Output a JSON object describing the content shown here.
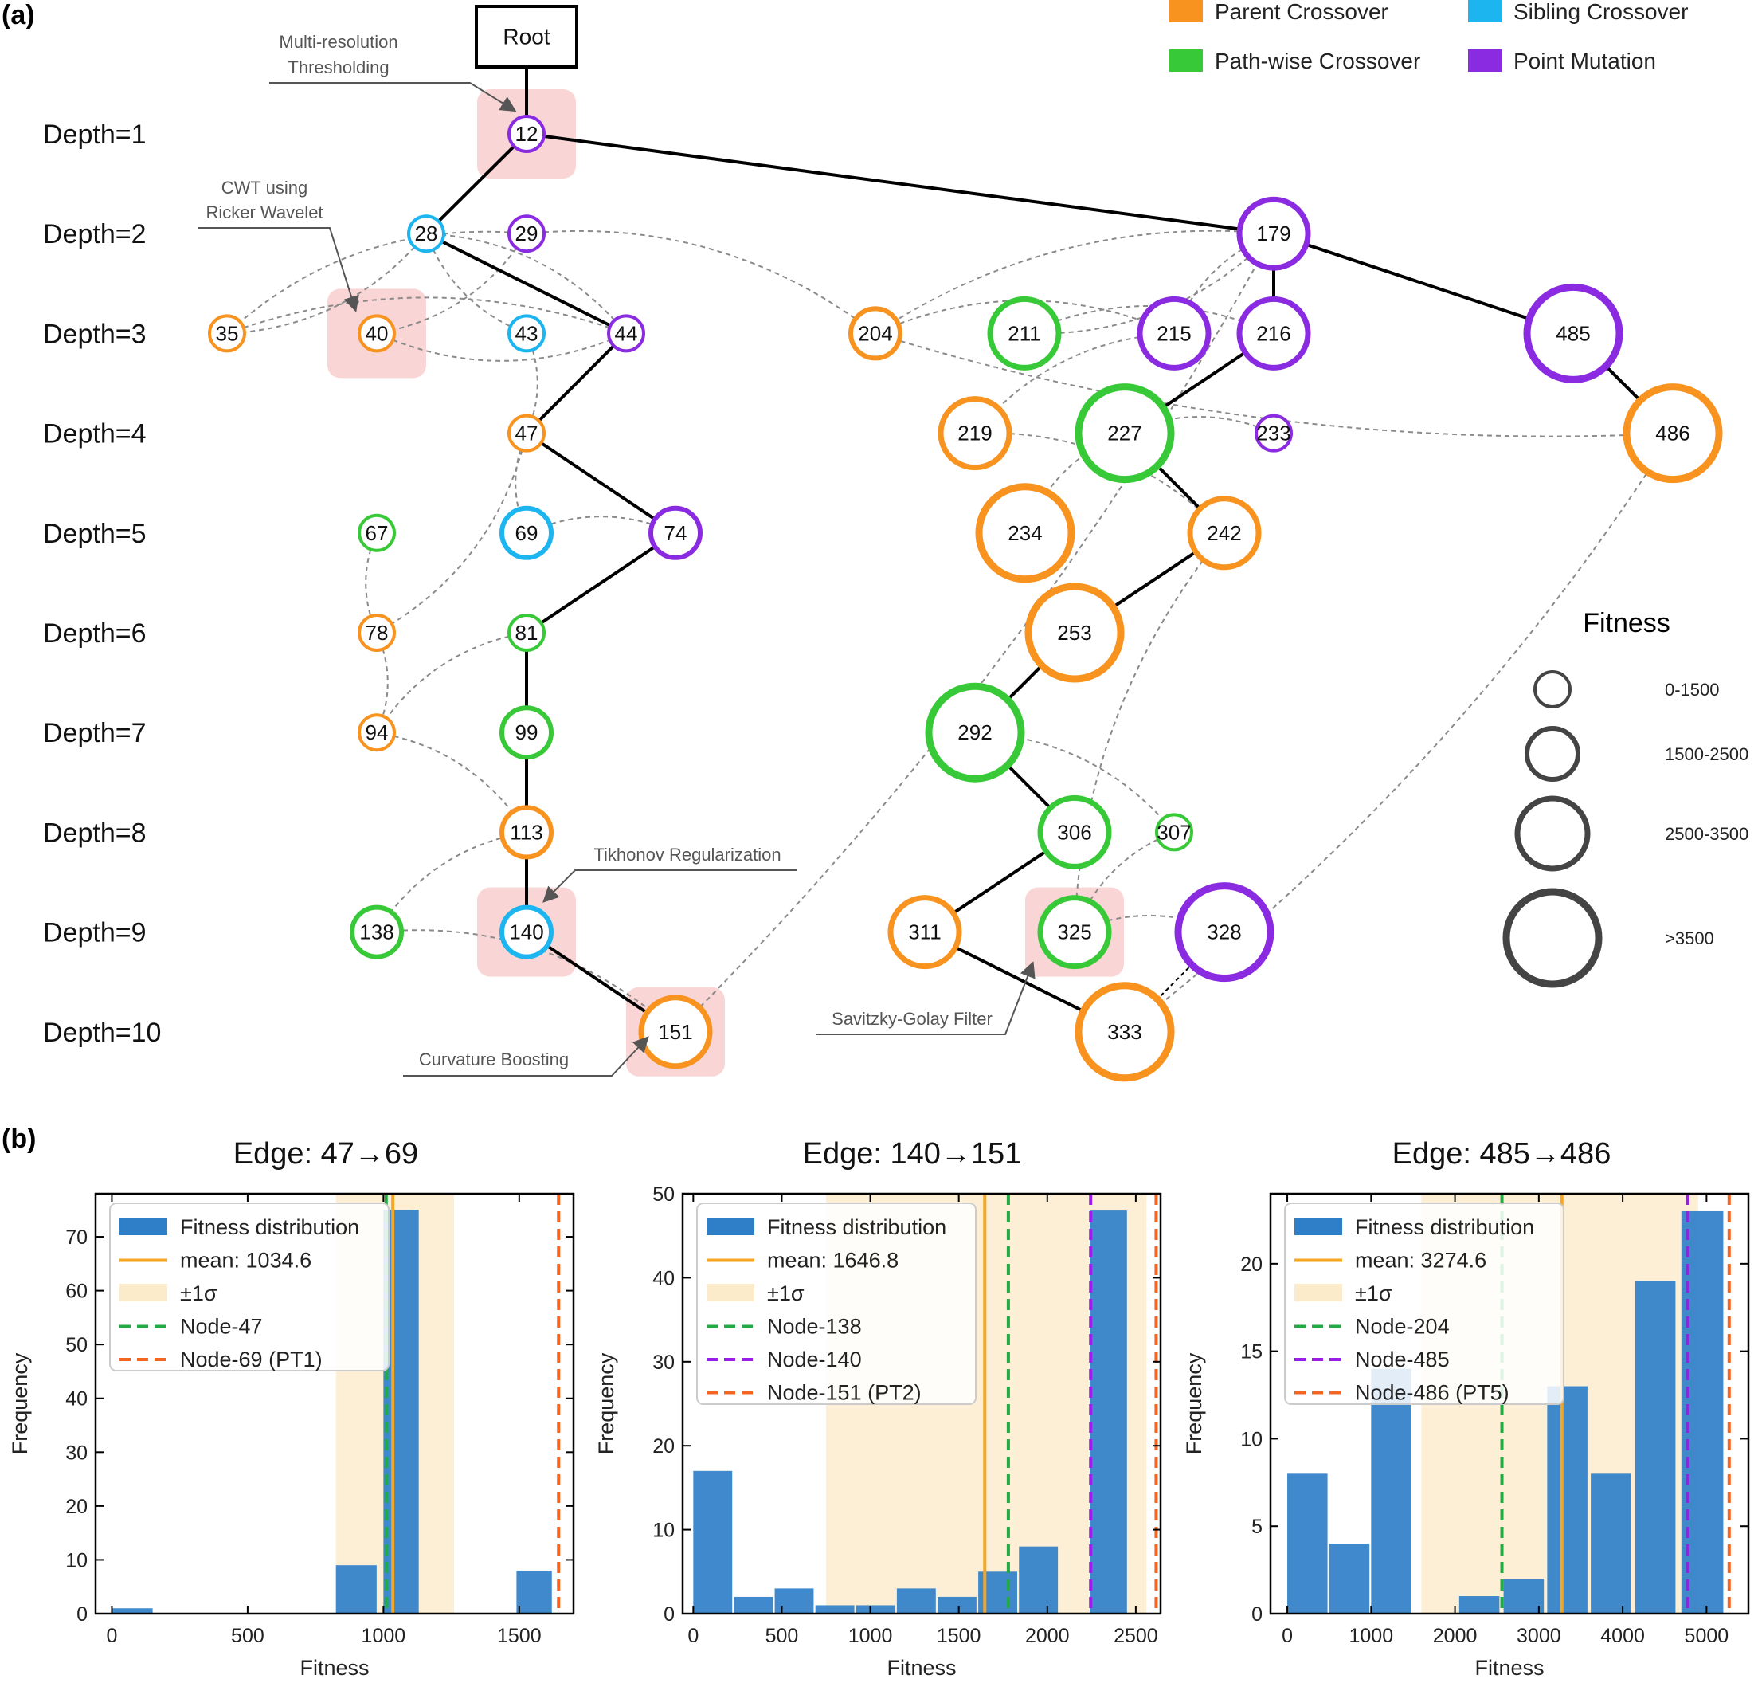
{
  "panel_a": {
    "label": "(a)",
    "root_label": "Root",
    "fitness_legend_title": "Fitness",
    "size_legend": [
      {
        "label": "0-1500"
      },
      {
        "label": "1500-2500"
      },
      {
        "label": "2500-3500"
      },
      {
        "label": ">3500"
      }
    ],
    "operators": [
      {
        "name": "Parent Crossover",
        "color": "#F7931E"
      },
      {
        "name": "Sibling Crossover",
        "color": "#1CB5EF"
      },
      {
        "name": "Path-wise Crossover",
        "color": "#38C938"
      },
      {
        "name": "Point Mutation",
        "color": "#8A2BE2"
      }
    ],
    "depths": [
      "Depth=1",
      "Depth=2",
      "Depth=3",
      "Depth=4",
      "Depth=5",
      "Depth=6",
      "Depth=7",
      "Depth=8",
      "Depth=9",
      "Depth=10"
    ],
    "annotations": [
      {
        "id": "a1",
        "lines": [
          "Multi-resolution",
          "Thresholding"
        ]
      },
      {
        "id": "a2",
        "lines": [
          "CWT using",
          "Ricker Wavelet"
        ]
      },
      {
        "id": "a3",
        "lines": [
          "Tikhonov Regularization"
        ]
      },
      {
        "id": "a4",
        "lines": [
          "Curvature Boosting"
        ]
      },
      {
        "id": "a5",
        "lines": [
          "Savitzky-Golay Filter"
        ]
      }
    ],
    "nodes": [
      {
        "id": "12",
        "depth": 1,
        "op": "Point Mutation",
        "fitness_bin": "0-1500",
        "highlight": true
      },
      {
        "id": "28",
        "depth": 2,
        "op": "Sibling Crossover",
        "fitness_bin": "0-1500"
      },
      {
        "id": "29",
        "depth": 2,
        "op": "Point Mutation",
        "fitness_bin": "0-1500"
      },
      {
        "id": "179",
        "depth": 2,
        "op": "Point Mutation",
        "fitness_bin": "2500-3500"
      },
      {
        "id": "35",
        "depth": 3,
        "op": "Parent Crossover",
        "fitness_bin": "0-1500"
      },
      {
        "id": "40",
        "depth": 3,
        "op": "Parent Crossover",
        "fitness_bin": "0-1500",
        "highlight": true
      },
      {
        "id": "43",
        "depth": 3,
        "op": "Sibling Crossover",
        "fitness_bin": "0-1500"
      },
      {
        "id": "44",
        "depth": 3,
        "op": "Point Mutation",
        "fitness_bin": "0-1500"
      },
      {
        "id": "204",
        "depth": 3,
        "op": "Parent Crossover",
        "fitness_bin": "1500-2500"
      },
      {
        "id": "211",
        "depth": 3,
        "op": "Path-wise Crossover",
        "fitness_bin": "2500-3500"
      },
      {
        "id": "215",
        "depth": 3,
        "op": "Point Mutation",
        "fitness_bin": "2500-3500"
      },
      {
        "id": "216",
        "depth": 3,
        "op": "Point Mutation",
        "fitness_bin": "2500-3500"
      },
      {
        "id": "485",
        "depth": 3,
        "op": "Point Mutation",
        "fitness_bin": ">3500"
      },
      {
        "id": "47",
        "depth": 4,
        "op": "Parent Crossover",
        "fitness_bin": "0-1500"
      },
      {
        "id": "219",
        "depth": 4,
        "op": "Parent Crossover",
        "fitness_bin": "2500-3500"
      },
      {
        "id": "227",
        "depth": 4,
        "op": "Path-wise Crossover",
        "fitness_bin": ">3500"
      },
      {
        "id": "233",
        "depth": 4,
        "op": "Point Mutation",
        "fitness_bin": "0-1500"
      },
      {
        "id": "486",
        "depth": 4,
        "op": "Parent Crossover",
        "fitness_bin": ">3500"
      },
      {
        "id": "67",
        "depth": 5,
        "op": "Path-wise Crossover",
        "fitness_bin": "0-1500"
      },
      {
        "id": "69",
        "depth": 5,
        "op": "Sibling Crossover",
        "fitness_bin": "1500-2500"
      },
      {
        "id": "74",
        "depth": 5,
        "op": "Point Mutation",
        "fitness_bin": "1500-2500"
      },
      {
        "id": "234",
        "depth": 5,
        "op": "Parent Crossover",
        "fitness_bin": ">3500"
      },
      {
        "id": "242",
        "depth": 5,
        "op": "Parent Crossover",
        "fitness_bin": "2500-3500"
      },
      {
        "id": "78",
        "depth": 6,
        "op": "Parent Crossover",
        "fitness_bin": "0-1500"
      },
      {
        "id": "81",
        "depth": 6,
        "op": "Path-wise Crossover",
        "fitness_bin": "0-1500"
      },
      {
        "id": "253",
        "depth": 6,
        "op": "Parent Crossover",
        "fitness_bin": ">3500"
      },
      {
        "id": "94",
        "depth": 7,
        "op": "Parent Crossover",
        "fitness_bin": "0-1500"
      },
      {
        "id": "99",
        "depth": 7,
        "op": "Path-wise Crossover",
        "fitness_bin": "1500-2500"
      },
      {
        "id": "292",
        "depth": 7,
        "op": "Path-wise Crossover",
        "fitness_bin": ">3500"
      },
      {
        "id": "113",
        "depth": 8,
        "op": "Parent Crossover",
        "fitness_bin": "1500-2500"
      },
      {
        "id": "306",
        "depth": 8,
        "op": "Path-wise Crossover",
        "fitness_bin": "2500-3500"
      },
      {
        "id": "307",
        "depth": 8,
        "op": "Path-wise Crossover",
        "fitness_bin": "0-1500"
      },
      {
        "id": "138",
        "depth": 9,
        "op": "Path-wise Crossover",
        "fitness_bin": "1500-2500"
      },
      {
        "id": "140",
        "depth": 9,
        "op": "Sibling Crossover",
        "fitness_bin": "1500-2500",
        "highlight": true
      },
      {
        "id": "311",
        "depth": 9,
        "op": "Parent Crossover",
        "fitness_bin": "2500-3500"
      },
      {
        "id": "325",
        "depth": 9,
        "op": "Path-wise Crossover",
        "fitness_bin": "2500-3500",
        "highlight": true
      },
      {
        "id": "328",
        "depth": 9,
        "op": "Point Mutation",
        "fitness_bin": ">3500"
      },
      {
        "id": "151",
        "depth": 10,
        "op": "Parent Crossover",
        "fitness_bin": "2500-3500",
        "highlight": true
      },
      {
        "id": "333",
        "depth": 10,
        "op": "Parent Crossover",
        "fitness_bin": ">3500"
      }
    ],
    "tree_edges": [
      [
        "Root",
        "12"
      ],
      [
        "12",
        "28"
      ],
      [
        "12",
        "179"
      ],
      [
        "28",
        "44"
      ],
      [
        "44",
        "47"
      ],
      [
        "47",
        "74"
      ],
      [
        "74",
        "81"
      ],
      [
        "81",
        "99"
      ],
      [
        "99",
        "113"
      ],
      [
        "113",
        "140"
      ],
      [
        "140",
        "151"
      ],
      [
        "179",
        "216"
      ],
      [
        "179",
        "485"
      ],
      [
        "485",
        "486"
      ],
      [
        "216",
        "227"
      ],
      [
        "227",
        "242"
      ],
      [
        "242",
        "253"
      ],
      [
        "253",
        "292"
      ],
      [
        "292",
        "306"
      ],
      [
        "306",
        "311"
      ],
      [
        "311",
        "333"
      ]
    ],
    "dotted_edges": [
      [
        "328",
        "333"
      ]
    ],
    "crossover_links": [
      [
        "28",
        "35"
      ],
      [
        "29",
        "35"
      ],
      [
        "29",
        "40"
      ],
      [
        "28",
        "43"
      ],
      [
        "35",
        "44"
      ],
      [
        "40",
        "44"
      ],
      [
        "43",
        "47"
      ],
      [
        "44",
        "28"
      ],
      [
        "47",
        "78"
      ],
      [
        "47",
        "69"
      ],
      [
        "69",
        "74"
      ],
      [
        "67",
        "78"
      ],
      [
        "78",
        "94"
      ],
      [
        "81",
        "94"
      ],
      [
        "94",
        "113"
      ],
      [
        "113",
        "138"
      ],
      [
        "138",
        "151"
      ],
      [
        "151",
        "179"
      ],
      [
        "29",
        "204"
      ],
      [
        "179",
        "204"
      ],
      [
        "179",
        "211"
      ],
      [
        "179",
        "215"
      ],
      [
        "204",
        "215"
      ],
      [
        "204",
        "486"
      ],
      [
        "211",
        "216"
      ],
      [
        "215",
        "219"
      ],
      [
        "219",
        "242"
      ],
      [
        "227",
        "234"
      ],
      [
        "227",
        "233"
      ],
      [
        "242",
        "325"
      ],
      [
        "292",
        "307"
      ],
      [
        "307",
        "325"
      ],
      [
        "325",
        "328"
      ],
      [
        "333",
        "486"
      ]
    ]
  },
  "chart_data": [
    {
      "type": "bar",
      "title": "Edge: 47→69",
      "xlabel": "Fitness",
      "ylabel": "Frequency",
      "xlim": [
        -60,
        1700
      ],
      "ylim": [
        0,
        78
      ],
      "xticks": [
        0,
        500,
        1000,
        1500
      ],
      "yticks": [
        0,
        10,
        20,
        30,
        40,
        50,
        60,
        70
      ],
      "bins": [
        {
          "x0": 0,
          "x1": 150,
          "count": 1
        },
        {
          "x0": 825,
          "x1": 975,
          "count": 9
        },
        {
          "x0": 1000,
          "x1": 1130,
          "count": 75
        },
        {
          "x0": 1490,
          "x1": 1620,
          "count": 8
        }
      ],
      "mean": 1034.6,
      "sigma_band": [
        825,
        1260
      ],
      "vlines": [
        {
          "name": "Node-47",
          "x": 1010,
          "color": "#22AA44"
        },
        {
          "name": "Node-69 (PT1)",
          "x": 1645,
          "color": "#F26522"
        }
      ],
      "legend": [
        "Fitness distribution",
        "mean: 1034.6",
        "±1σ",
        "Node-47",
        "Node-69 (PT1)"
      ]
    },
    {
      "type": "bar",
      "title": "Edge: 140→151",
      "xlabel": "Fitness",
      "ylabel": "Frequency",
      "xlim": [
        -60,
        2640
      ],
      "ylim": [
        0,
        50
      ],
      "xticks": [
        0,
        500,
        1000,
        1500,
        2000,
        2500
      ],
      "yticks": [
        0,
        10,
        20,
        30,
        40,
        50
      ],
      "bins": [
        {
          "x0": 0,
          "x1": 220,
          "count": 17
        },
        {
          "x0": 230,
          "x1": 450,
          "count": 2
        },
        {
          "x0": 460,
          "x1": 680,
          "count": 3
        },
        {
          "x0": 690,
          "x1": 910,
          "count": 1
        },
        {
          "x0": 920,
          "x1": 1140,
          "count": 1
        },
        {
          "x0": 1150,
          "x1": 1370,
          "count": 3
        },
        {
          "x0": 1380,
          "x1": 1600,
          "count": 2
        },
        {
          "x0": 1610,
          "x1": 1830,
          "count": 5
        },
        {
          "x0": 1840,
          "x1": 2060,
          "count": 8
        },
        {
          "x0": 2240,
          "x1": 2450,
          "count": 48
        }
      ],
      "mean": 1646.8,
      "sigma_band": [
        750,
        2560
      ],
      "vlines": [
        {
          "name": "Node-138",
          "x": 1780,
          "color": "#22AA44"
        },
        {
          "name": "Node-140",
          "x": 2245,
          "color": "#9B1DE8"
        },
        {
          "name": "Node-151 (PT2)",
          "x": 2615,
          "color": "#F26522"
        }
      ],
      "legend": [
        "Fitness distribution",
        "mean: 1646.8",
        "±1σ",
        "Node-138",
        "Node-140",
        "Node-151 (PT2)"
      ]
    },
    {
      "type": "bar",
      "title": "Edge: 485→486",
      "xlabel": "Fitness",
      "ylabel": "Frequency",
      "xlim": [
        -200,
        5500
      ],
      "ylim": [
        0,
        24
      ],
      "xticks": [
        0,
        1000,
        2000,
        3000,
        4000,
        5000
      ],
      "yticks": [
        0,
        5,
        10,
        15,
        20
      ],
      "bins": [
        {
          "x0": 0,
          "x1": 480,
          "count": 8
        },
        {
          "x0": 500,
          "x1": 980,
          "count": 4
        },
        {
          "x0": 1000,
          "x1": 1480,
          "count": 14
        },
        {
          "x0": 2050,
          "x1": 2530,
          "count": 1
        },
        {
          "x0": 2580,
          "x1": 3060,
          "count": 2
        },
        {
          "x0": 3100,
          "x1": 3580,
          "count": 13
        },
        {
          "x0": 3620,
          "x1": 4100,
          "count": 8
        },
        {
          "x0": 4150,
          "x1": 4630,
          "count": 19
        },
        {
          "x0": 4700,
          "x1": 5200,
          "count": 23
        }
      ],
      "mean": 3274.6,
      "sigma_band": [
        1600,
        4900
      ],
      "vlines": [
        {
          "name": "Node-204",
          "x": 2560,
          "color": "#22AA44"
        },
        {
          "name": "Node-485",
          "x": 4775,
          "color": "#9B1DE8"
        },
        {
          "name": "Node-486 (PT5)",
          "x": 5270,
          "color": "#F26522"
        }
      ],
      "legend": [
        "Fitness distribution",
        "mean: 3274.6",
        "±1σ",
        "Node-204",
        "Node-485",
        "Node-486 (PT5)"
      ]
    }
  ],
  "panel_b": {
    "label": "(b)"
  }
}
